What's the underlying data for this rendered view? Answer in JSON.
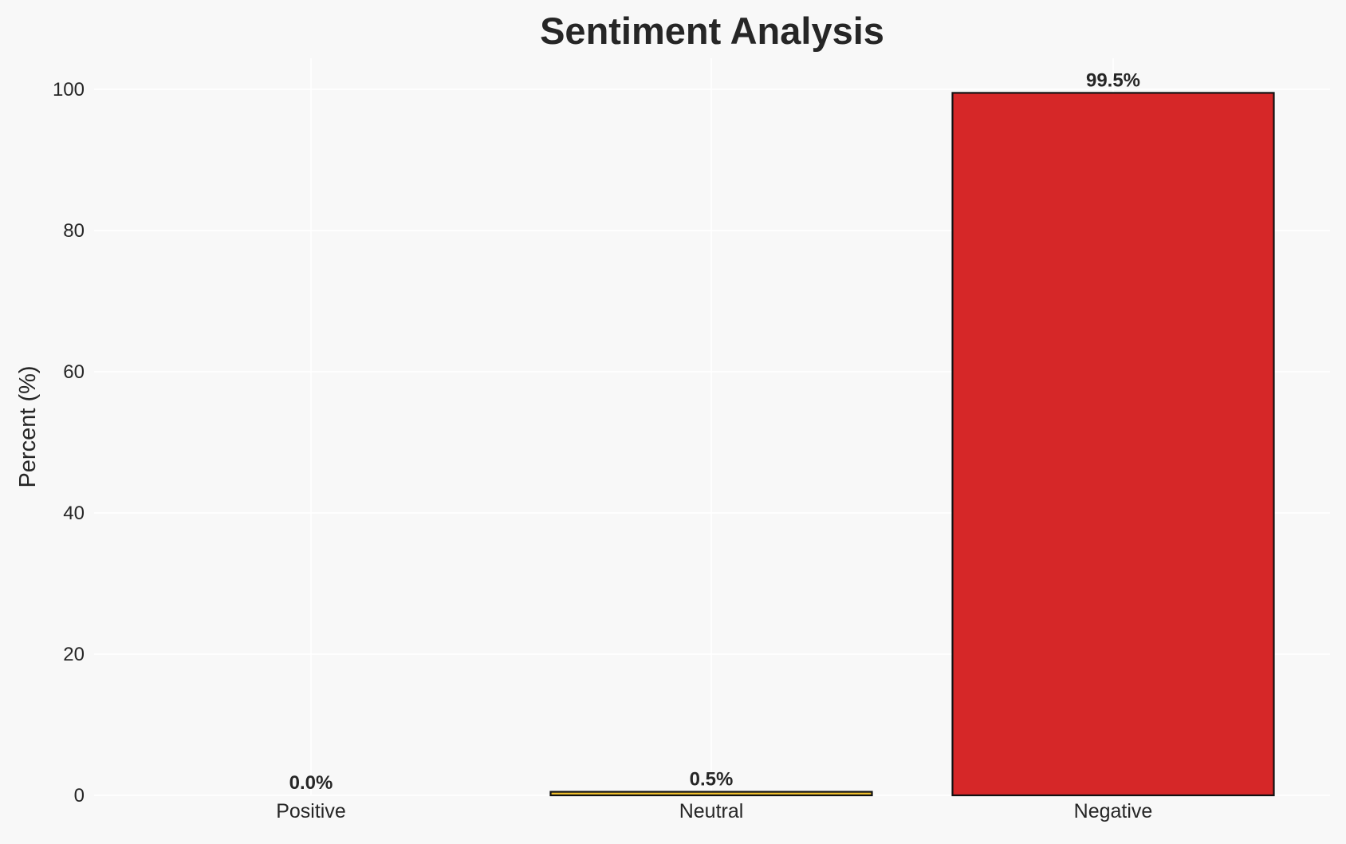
{
  "chart_data": {
    "type": "bar",
    "title": "Sentiment Analysis",
    "xlabel": "",
    "ylabel": "Percent (%)",
    "categories": [
      "Positive",
      "Neutral",
      "Negative"
    ],
    "values": [
      0.0,
      0.5,
      99.5
    ],
    "data_labels": [
      "0.0%",
      "0.5%",
      "99.5%"
    ],
    "colors": [
      "#2ca02c",
      "#f2c12e",
      "#d62728"
    ],
    "ylim": [
      0,
      104.5
    ],
    "yticks": [
      0,
      20,
      40,
      60,
      80,
      100
    ],
    "grid": true,
    "background": "#f8f8f8"
  }
}
